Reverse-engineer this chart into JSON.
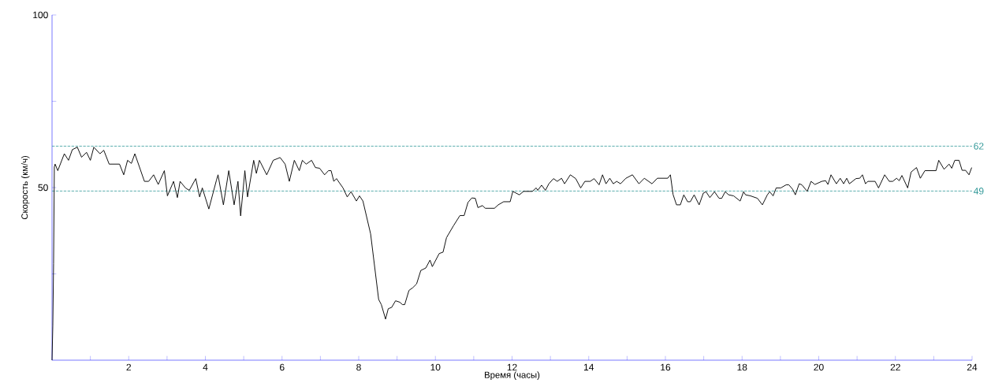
{
  "chart_data": {
    "type": "line",
    "xlabel": "Время (часы)",
    "ylabel": "Скорость (км/ч)",
    "xlim": [
      0,
      24
    ],
    "ylim": [
      0,
      100
    ],
    "xticks": [
      {
        "value": 1,
        "label": null
      },
      2,
      {
        "value": 3,
        "label": null
      },
      4,
      {
        "value": 5,
        "label": null
      },
      6,
      {
        "value": 7,
        "label": null
      },
      8,
      {
        "value": 9,
        "label": null
      },
      10,
      {
        "value": 11,
        "label": null
      },
      12,
      {
        "value": 13,
        "label": null
      },
      14,
      {
        "value": 15,
        "label": null
      },
      16,
      {
        "value": 17,
        "label": null
      },
      18,
      {
        "value": 19,
        "label": null
      },
      20,
      {
        "value": 21,
        "label": null
      },
      22,
      {
        "value": 23,
        "label": null
      },
      24
    ],
    "yticks": [
      {
        "value": 25,
        "label": null
      },
      50,
      {
        "value": 75,
        "label": null
      },
      100
    ],
    "marker": "none",
    "line_style": "solid",
    "ref_lines": [
      {
        "axis": "y",
        "value": 62,
        "label": "62",
        "color": "#339999",
        "line_style": "dashed"
      },
      {
        "axis": "y",
        "value": 49,
        "label": "49",
        "color": "#339999",
        "line_style": "dashed"
      }
    ],
    "series": [
      {
        "color": "#000000",
        "x": [
          0,
          0.02,
          0.04,
          0.06,
          0.08,
          0.15,
          0.32,
          0.43,
          0.53,
          0.66,
          0.77,
          0.9,
          1.0,
          1.09,
          1.25,
          1.35,
          1.49,
          1.76,
          1.87,
          1.97,
          2.07,
          2.16,
          2.41,
          2.52,
          2.65,
          2.77,
          2.93,
          3.01,
          3.17,
          3.27,
          3.34,
          3.48,
          3.58,
          3.75,
          3.85,
          3.92,
          4.09,
          4.29,
          4.33,
          4.47,
          4.61,
          4.75,
          4.85,
          4.92,
          5.03,
          5.1,
          5.26,
          5.33,
          5.41,
          5.6,
          5.77,
          5.95,
          6.08,
          6.19,
          6.32,
          6.45,
          6.53,
          6.63,
          6.77,
          6.87,
          6.98,
          7.11,
          7.21,
          7.28,
          7.35,
          7.42,
          7.59,
          7.7,
          7.8,
          7.94,
          8.02,
          8.11,
          8.31,
          8.52,
          8.59,
          8.7,
          8.77,
          8.86,
          8.96,
          9.07,
          9.14,
          9.2,
          9.31,
          9.41,
          9.51,
          9.62,
          9.75,
          9.86,
          9.92,
          10.1,
          10.2,
          10.29,
          10.47,
          10.64,
          10.75,
          10.85,
          10.95,
          11.04,
          11.11,
          11.23,
          11.3,
          11.54,
          11.64,
          11.78,
          11.95,
          12.02,
          12.19,
          12.3,
          12.53,
          12.63,
          12.67,
          12.77,
          12.87,
          12.96,
          13.08,
          13.18,
          13.29,
          13.37,
          13.52,
          13.66,
          13.79,
          13.9,
          14.04,
          14.14,
          14.27,
          14.36,
          14.45,
          14.55,
          14.64,
          14.73,
          14.83,
          14.97,
          15.14,
          15.31,
          15.45,
          15.65,
          15.79,
          16.06,
          16.13,
          16.2,
          16.29,
          16.39,
          16.48,
          16.58,
          16.65,
          16.75,
          16.88,
          16.99,
          17.06,
          17.16,
          17.28,
          17.4,
          17.47,
          17.56,
          17.65,
          17.78,
          17.95,
          18.04,
          18.09,
          18.22,
          18.4,
          18.53,
          18.66,
          18.72,
          18.81,
          18.89,
          19.01,
          19.15,
          19.22,
          19.32,
          19.39,
          19.49,
          19.56,
          19.7,
          19.8,
          19.9,
          20.08,
          20.18,
          20.24,
          20.32,
          20.46,
          20.56,
          20.65,
          20.73,
          20.8,
          20.97,
          21.07,
          21.14,
          21.22,
          21.28,
          21.47,
          21.56,
          21.72,
          21.84,
          21.93,
          22.03,
          22.1,
          22.17,
          22.32,
          22.41,
          22.55,
          22.65,
          22.77,
          23.06,
          23.13,
          23.27,
          23.4,
          23.47,
          23.55,
          23.66,
          23.74,
          23.83,
          23.92,
          23.99
        ],
        "values": [
          0,
          10,
          28,
          56,
          56.8,
          54.9,
          59.8,
          57.9,
          61,
          61.7,
          58.8,
          60.2,
          57.9,
          61.7,
          59.8,
          60.8,
          56.8,
          56.8,
          53.7,
          57.9,
          57,
          59.8,
          51.8,
          51.8,
          53.7,
          50.9,
          54.9,
          47.6,
          51.8,
          47.1,
          51.8,
          49.9,
          49.2,
          52.6,
          47.3,
          49.9,
          43.8,
          52.2,
          53.7,
          45,
          54.9,
          45,
          51.8,
          41.8,
          54.9,
          47.3,
          57.9,
          54.1,
          57.9,
          53.7,
          57.9,
          58.7,
          56.8,
          51.8,
          57.9,
          54.9,
          57.9,
          56.8,
          57.9,
          55.8,
          55.6,
          53.7,
          54.9,
          54.9,
          51.8,
          52.6,
          49.9,
          47.3,
          48.8,
          46.1,
          47.6,
          46.1,
          36.6,
          17.6,
          16.1,
          11.9,
          14.9,
          15.3,
          17.2,
          16.8,
          16.1,
          16.1,
          20.2,
          21,
          22.1,
          26,
          26.7,
          29,
          27.1,
          30.9,
          31.3,
          35.5,
          38.9,
          41.9,
          41.9,
          45.7,
          47,
          46.9,
          44.2,
          44.8,
          44,
          44,
          45,
          45.9,
          45.9,
          48.9,
          47.9,
          48.9,
          48.9,
          49.9,
          49.2,
          50.7,
          49.2,
          51.1,
          52.6,
          51.8,
          52.7,
          51.1,
          53.7,
          52.6,
          49.9,
          51.8,
          51.8,
          52.6,
          50.8,
          53.7,
          51.1,
          52.7,
          51.1,
          51.8,
          51.1,
          52.7,
          53.7,
          51.1,
          52.7,
          51.1,
          52.7,
          52.7,
          53.7,
          48,
          45,
          45,
          47.9,
          45.9,
          45.9,
          47.9,
          45,
          48.4,
          48.8,
          47.1,
          48.8,
          46.9,
          46.9,
          48.8,
          47.9,
          47.6,
          46.1,
          48.8,
          47.9,
          47.6,
          46.9,
          45,
          47.9,
          48.8,
          47.6,
          49.9,
          49.9,
          50.8,
          50.8,
          49.5,
          47.9,
          51.1,
          50.8,
          48.9,
          51.8,
          50.9,
          51.8,
          52,
          50.9,
          53.7,
          51.1,
          52.7,
          51.1,
          52.7,
          51.1,
          52.6,
          52.7,
          53.7,
          51.1,
          51.8,
          51.8,
          49.9,
          53.7,
          51.8,
          51.8,
          52.7,
          52,
          53.5,
          49.9,
          54.5,
          55.8,
          52.7,
          54.9,
          54.9,
          57.9,
          55.3,
          56.8,
          55.6,
          57.9,
          57.9,
          55,
          55,
          53.7,
          55.8
        ]
      }
    ]
  }
}
